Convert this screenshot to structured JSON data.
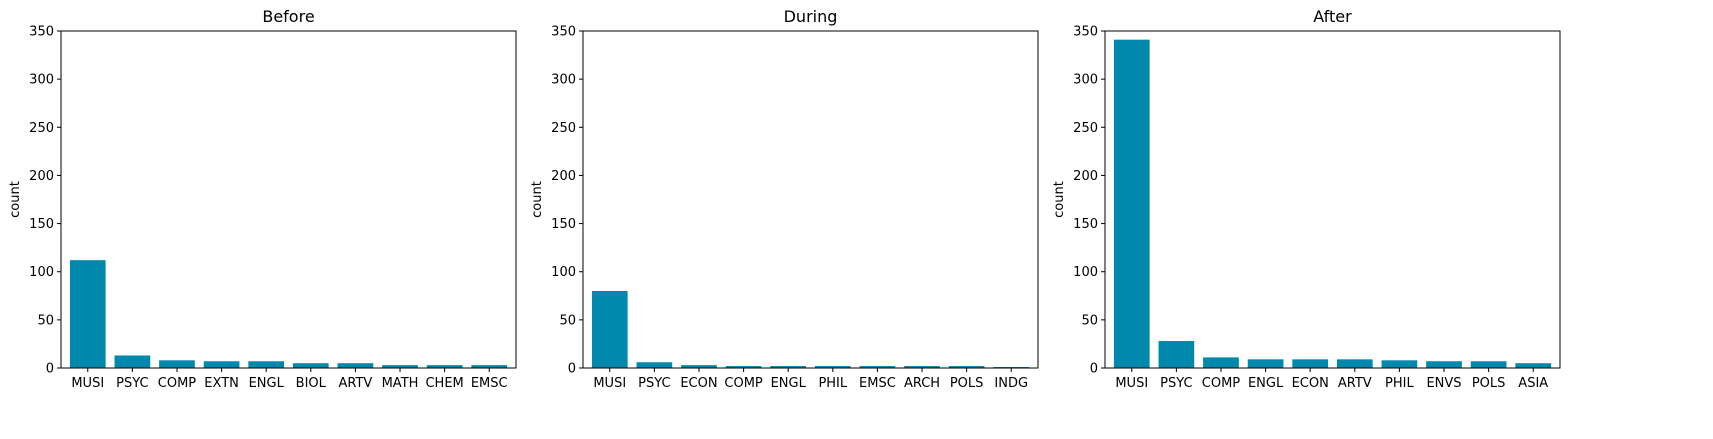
{
  "chart_data": [
    {
      "type": "bar",
      "title": "Before",
      "ylabel": "count",
      "xlabel": "",
      "ylim": [
        0,
        350
      ],
      "yticks": [
        0,
        50,
        100,
        150,
        200,
        250,
        300,
        350
      ],
      "color": "#0088ad",
      "categories": [
        "MUSI",
        "PSYC",
        "COMP",
        "EXTN",
        "ENGL",
        "BIOL",
        "ARTV",
        "MATH",
        "CHEM",
        "EMSC"
      ],
      "values": [
        112,
        13,
        8,
        7,
        7,
        5,
        5,
        3,
        3,
        3
      ]
    },
    {
      "type": "bar",
      "title": "During",
      "ylabel": "count",
      "xlabel": "",
      "ylim": [
        0,
        350
      ],
      "yticks": [
        0,
        50,
        100,
        150,
        200,
        250,
        300,
        350
      ],
      "color": "#0088ad",
      "categories": [
        "MUSI",
        "PSYC",
        "ECON",
        "COMP",
        "ENGL",
        "PHIL",
        "EMSC",
        "ARCH",
        "POLS",
        "INDG"
      ],
      "values": [
        80,
        6,
        3,
        2,
        2,
        2,
        2,
        2,
        2,
        1
      ]
    },
    {
      "type": "bar",
      "title": "After",
      "ylabel": "count",
      "xlabel": "",
      "ylim": [
        0,
        350
      ],
      "yticks": [
        0,
        50,
        100,
        150,
        200,
        250,
        300,
        350
      ],
      "color": "#0088ad",
      "categories": [
        "MUSI",
        "PSYC",
        "COMP",
        "ENGL",
        "ECON",
        "ARTV",
        "PHIL",
        "ENVS",
        "POLS",
        "ASIA"
      ],
      "values": [
        341,
        28,
        11,
        9,
        9,
        9,
        8,
        7,
        7,
        5
      ]
    }
  ]
}
